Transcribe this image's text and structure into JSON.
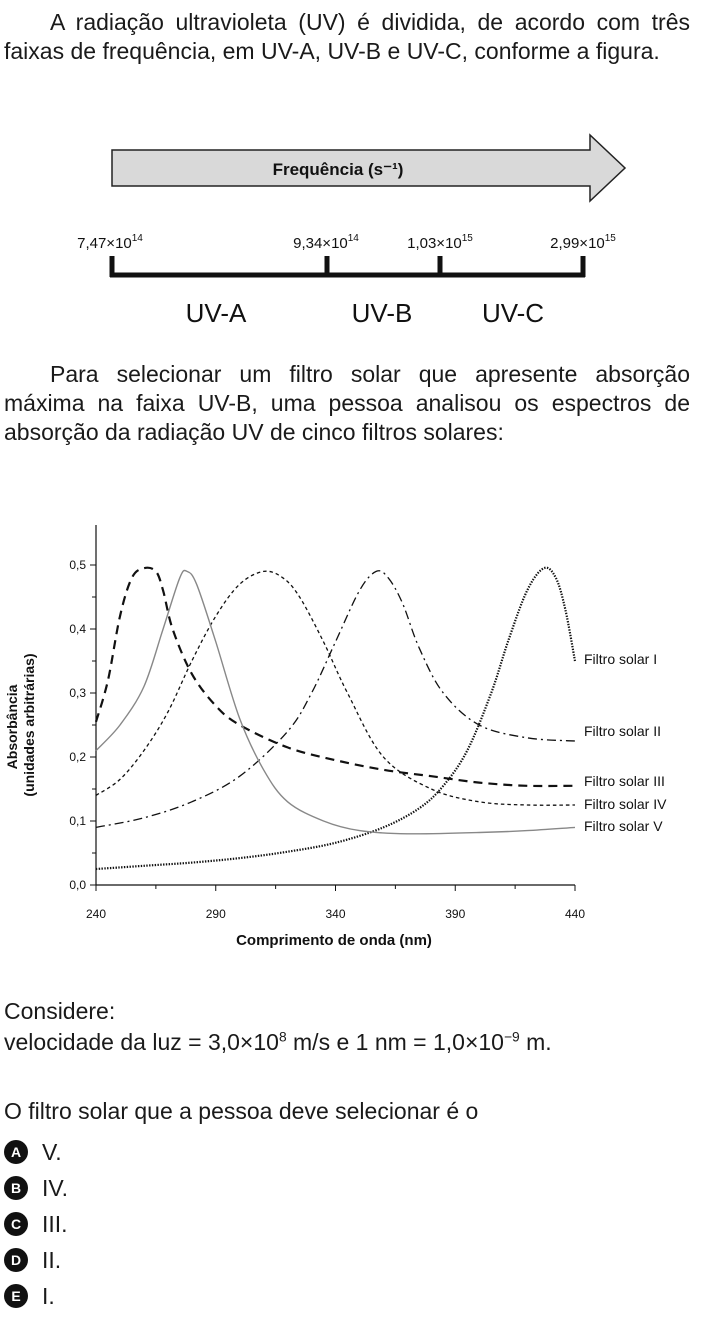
{
  "intro_text": "A radiação ultravioleta (UV) é dividida, de acordo com três faixas de frequência, em UV-A, UV-B e UV-C, conforme a figura.",
  "frequency_figure": {
    "arrow_label": "Frequência (s⁻¹)",
    "ticks": [
      {
        "mantissa": "7,47×10",
        "exp": "14"
      },
      {
        "mantissa": "9,34×10",
        "exp": "14"
      },
      {
        "mantissa": "1,03×10",
        "exp": "15"
      },
      {
        "mantissa": "2,99×10",
        "exp": "15"
      }
    ],
    "bands": [
      "UV-A",
      "UV-B",
      "UV-C"
    ]
  },
  "select_text": "Para selecionar um filtro solar que apresente absorção máxima na faixa UV-B, uma pessoa analisou os espectros de absorção da radiação UV de cinco filtros solares:",
  "chart_data": {
    "type": "line",
    "xlabel": "Comprimento de onda (nm)",
    "ylabel": [
      "Absorbância",
      "(unidades arbitrárias)"
    ],
    "xlim": [
      240,
      440
    ],
    "ylim": [
      0,
      0.5
    ],
    "x_ticks": [
      240,
      290,
      340,
      390,
      440
    ],
    "y_ticks": [
      "0,0",
      "0,1",
      "0,2",
      "0,3",
      "0,4",
      "0,5"
    ],
    "legend_placement": "right, at series ends",
    "series": [
      {
        "name": "Filtro solar I",
        "style": "dotted",
        "x": [
          240,
          260,
          280,
          300,
          320,
          340,
          360,
          375,
          385,
          395,
          405,
          412,
          420,
          427,
          432,
          436,
          440
        ],
        "y": [
          0.025,
          0.03,
          0.035,
          0.042,
          0.052,
          0.066,
          0.09,
          0.12,
          0.155,
          0.21,
          0.3,
          0.38,
          0.46,
          0.495,
          0.48,
          0.43,
          0.35
        ]
      },
      {
        "name": "Filtro solar II",
        "style": "dash-dot",
        "x": [
          240,
          260,
          280,
          300,
          320,
          330,
          340,
          350,
          357,
          362,
          368,
          375,
          385,
          400,
          420,
          440
        ],
        "y": [
          0.09,
          0.105,
          0.13,
          0.17,
          0.24,
          0.3,
          0.38,
          0.46,
          0.49,
          0.48,
          0.44,
          0.37,
          0.3,
          0.25,
          0.23,
          0.225
        ]
      },
      {
        "name": "Filtro solar III",
        "style": "dashed",
        "x": [
          240,
          245,
          250,
          255,
          260,
          265,
          268,
          272,
          280,
          290,
          300,
          320,
          340,
          360,
          380,
          400,
          420,
          440
        ],
        "y": [
          0.255,
          0.32,
          0.42,
          0.48,
          0.495,
          0.49,
          0.46,
          0.4,
          0.33,
          0.28,
          0.25,
          0.215,
          0.195,
          0.18,
          0.17,
          0.16,
          0.155,
          0.155
        ]
      },
      {
        "name": "Filtro solar IV",
        "style": "short-dash",
        "x": [
          240,
          250,
          260,
          270,
          280,
          290,
          300,
          310,
          318,
          325,
          335,
          345,
          360,
          380,
          400,
          420,
          440
        ],
        "y": [
          0.14,
          0.165,
          0.21,
          0.27,
          0.35,
          0.42,
          0.47,
          0.49,
          0.48,
          0.45,
          0.38,
          0.3,
          0.2,
          0.15,
          0.13,
          0.125,
          0.125
        ]
      },
      {
        "name": "Filtro solar V",
        "style": "solid-gray",
        "x": [
          240,
          250,
          260,
          268,
          275,
          278,
          282,
          290,
          300,
          310,
          320,
          335,
          350,
          370,
          400,
          420,
          440
        ],
        "y": [
          0.21,
          0.25,
          0.31,
          0.4,
          0.48,
          0.49,
          0.47,
          0.38,
          0.26,
          0.18,
          0.13,
          0.1,
          0.085,
          0.08,
          0.082,
          0.085,
          0.09
        ]
      }
    ]
  },
  "consider_title": "Considere:",
  "consider_text": {
    "part1": "velocidade da luz = 3,0×10",
    "exp1": "8",
    "part2": " m/s e 1 nm = 1,0×10",
    "exp2": "−9",
    "part3": " m."
  },
  "question_text": "O filtro solar que a pessoa deve selecionar é o",
  "options": [
    {
      "letter": "A",
      "text": "V."
    },
    {
      "letter": "B",
      "text": "IV."
    },
    {
      "letter": "C",
      "text": "III."
    },
    {
      "letter": "D",
      "text": "II."
    },
    {
      "letter": "E",
      "text": "I."
    }
  ]
}
